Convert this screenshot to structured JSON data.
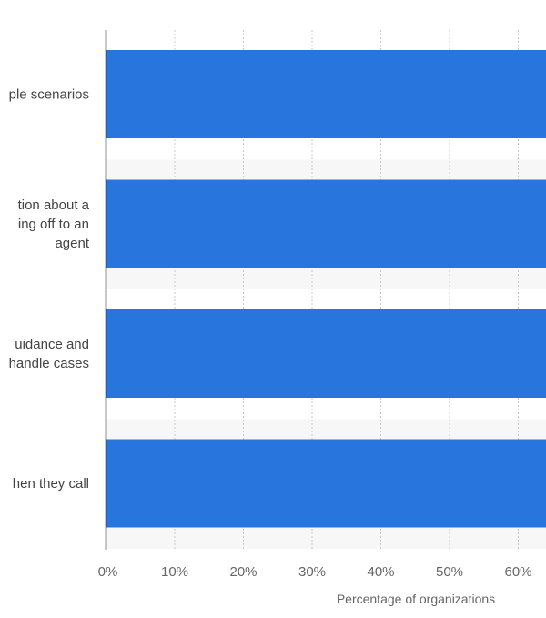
{
  "chart_data": {
    "type": "bar",
    "orientation": "horizontal",
    "categories": [
      "...le scenarios",
      "...tion about a\n...ing off to an\nagent",
      "...uidance and\n...handle cases",
      "...hen they call"
    ],
    "visible_category_text": [
      [
        "ple scenarios"
      ],
      [
        "tion about a",
        "ing off to an",
        "agent"
      ],
      [
        "uidance and",
        "handle cases"
      ],
      [
        "hen they call"
      ]
    ],
    "values": [
      64,
      64,
      64,
      64
    ],
    "value_note": "bars extend beyond visible right edge",
    "xlabel": "Percentage of organizations",
    "ylabel": "",
    "xlim": [
      0,
      64
    ],
    "x_ticks": [
      "0%",
      "10%",
      "20%",
      "30%",
      "40%",
      "50%",
      "60%"
    ],
    "bar_color": "#2876dd",
    "grid": true,
    "grid_style": "dotted vertical",
    "band_color": "#f7f7f7"
  }
}
